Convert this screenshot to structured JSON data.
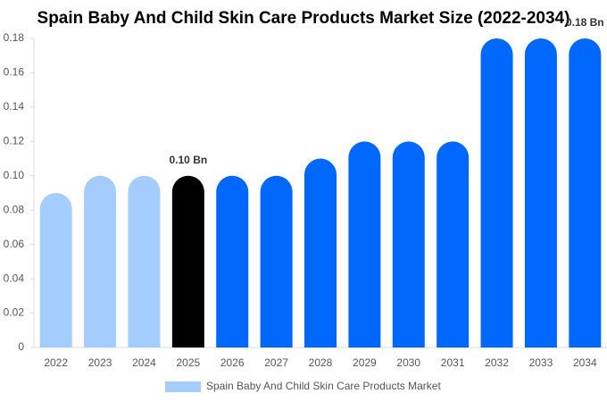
{
  "chart_data": {
    "type": "bar",
    "title": "Spain Baby And Child Skin Care Products Market Size (2022-2034)",
    "categories": [
      "2022",
      "2023",
      "2024",
      "2025",
      "2026",
      "2027",
      "2028",
      "2029",
      "2030",
      "2031",
      "2032",
      "2033",
      "2034"
    ],
    "series": [
      {
        "name": "Spain Baby And Child Skin Care Products Market",
        "color": "#a4cdfe",
        "values": [
          0.09,
          0.1,
          0.1,
          0.1,
          0.1,
          0.1,
          0.11,
          0.12,
          0.12,
          0.12,
          0.18,
          0.18,
          0.18
        ],
        "bar_colors": [
          "#a4cdfe",
          "#a4cdfe",
          "#a4cdfe",
          "#000000",
          "#0068fd",
          "#0068fd",
          "#0068fd",
          "#0068fd",
          "#0068fd",
          "#0068fd",
          "#0068fd",
          "#0068fd",
          "#0068fd"
        ],
        "value_labels": [
          null,
          null,
          null,
          "0.10 Bn",
          null,
          null,
          null,
          null,
          null,
          null,
          null,
          null,
          "0.18 Bn"
        ]
      }
    ],
    "ylim": [
      0,
      0.18
    ],
    "yticks": [
      0,
      0.02,
      0.04,
      0.06,
      0.08,
      {
        "value": 0.1,
        "label": "0.10"
      },
      0.12,
      0.14,
      0.16,
      0.18
    ],
    "legend": "bottom"
  }
}
